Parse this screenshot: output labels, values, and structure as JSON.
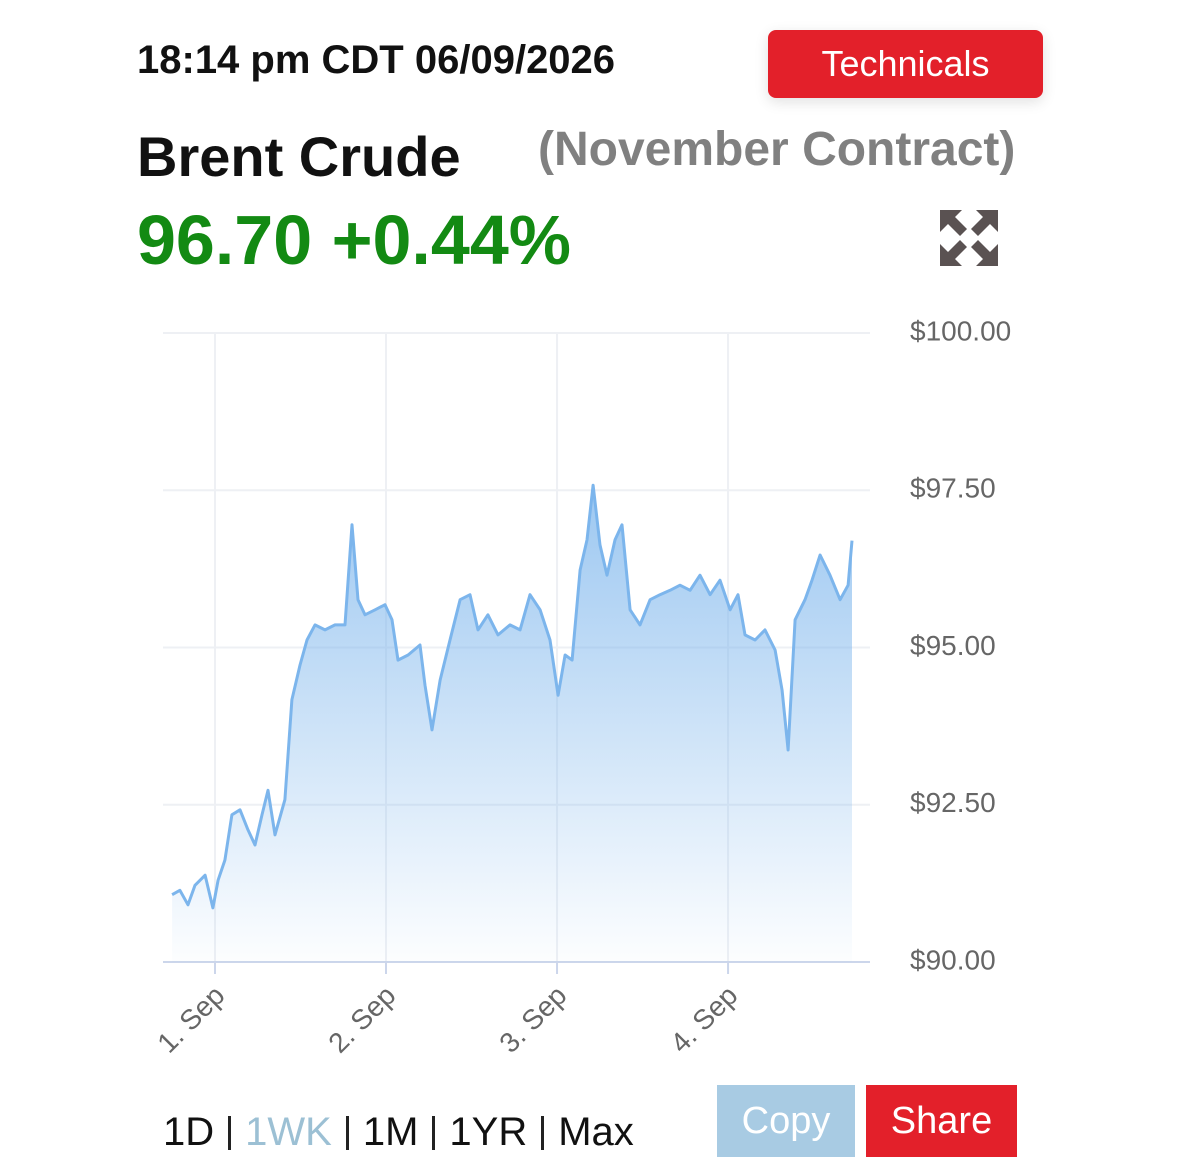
{
  "timestamp": "18:14 pm CDT 06/09/2026",
  "technicals_button": "Technicals",
  "instrument": "Brent Crude",
  "contract": "(November Contract)",
  "price": "96.70",
  "change": "+0.44%",
  "ranges": [
    "1D",
    "1WK",
    "1M",
    "1YR",
    "Max"
  ],
  "active_range": 1,
  "buttons": {
    "copy": "Copy",
    "share": "Share"
  },
  "chart_data": {
    "type": "area",
    "color": "#7cb5ec",
    "grid": true,
    "x": [
      0.749,
      0.795,
      0.842,
      0.883,
      0.942,
      0.988,
      1.018,
      1.058,
      1.099,
      1.146,
      1.193,
      1.234,
      1.275,
      1.31,
      1.351,
      1.409,
      1.45,
      1.497,
      1.538,
      1.585,
      1.643,
      1.702,
      1.76,
      1.801,
      1.836,
      1.877,
      1.936,
      1.994,
      2.035,
      2.07,
      2.129,
      2.199,
      2.228,
      2.269,
      2.316,
      2.374,
      2.433,
      2.491,
      2.538,
      2.596,
      2.655,
      2.725,
      2.784,
      2.842,
      2.901,
      2.959,
      3.006,
      3.047,
      3.088,
      3.135,
      3.175,
      3.211,
      3.251,
      3.292,
      3.339,
      3.38,
      3.427,
      3.485,
      3.544,
      3.602,
      3.661,
      3.719,
      3.778,
      3.836,
      3.895,
      3.953,
      4.012,
      4.058,
      4.099,
      4.158,
      4.216,
      4.275,
      4.316,
      4.351,
      4.392,
      4.45,
      4.491,
      4.538,
      4.596,
      4.655,
      4.702,
      4.725
    ],
    "values": [
      91.07,
      91.14,
      90.91,
      91.22,
      91.38,
      90.86,
      91.3,
      91.62,
      92.34,
      92.42,
      92.1,
      91.86,
      92.34,
      92.73,
      92.02,
      92.58,
      94.17,
      94.72,
      95.12,
      95.36,
      95.28,
      95.36,
      95.36,
      96.95,
      95.76,
      95.52,
      95.6,
      95.68,
      95.44,
      94.8,
      94.88,
      95.04,
      94.4,
      93.69,
      94.48,
      95.12,
      95.76,
      95.84,
      95.28,
      95.52,
      95.2,
      95.36,
      95.28,
      95.84,
      95.6,
      95.12,
      94.24,
      94.88,
      94.8,
      96.23,
      96.71,
      97.58,
      96.63,
      96.15,
      96.71,
      96.95,
      95.6,
      95.36,
      95.76,
      95.84,
      95.91,
      95.99,
      95.91,
      96.15,
      95.84,
      96.07,
      95.6,
      95.84,
      95.2,
      95.12,
      95.28,
      94.96,
      94.32,
      93.37,
      95.44,
      95.76,
      96.07,
      96.47,
      96.15,
      95.76,
      95.99,
      96.7
    ],
    "xlim": [
      0.696,
      4.83
    ],
    "ylim": [
      90,
      100
    ],
    "xticks": [
      {
        "value": 1,
        "label": "1. Sep"
      },
      {
        "value": 2,
        "label": "2. Sep"
      },
      {
        "value": 3,
        "label": "3. Sep"
      },
      {
        "value": 4,
        "label": "4. Sep"
      }
    ],
    "yticks": [
      {
        "value": 90,
        "label": "$90.00"
      },
      {
        "value": 92.5,
        "label": "$92.50"
      },
      {
        "value": 95,
        "label": "$95.00"
      },
      {
        "value": 97.5,
        "label": "$97.50"
      },
      {
        "value": 100,
        "label": "$100.00"
      }
    ]
  }
}
